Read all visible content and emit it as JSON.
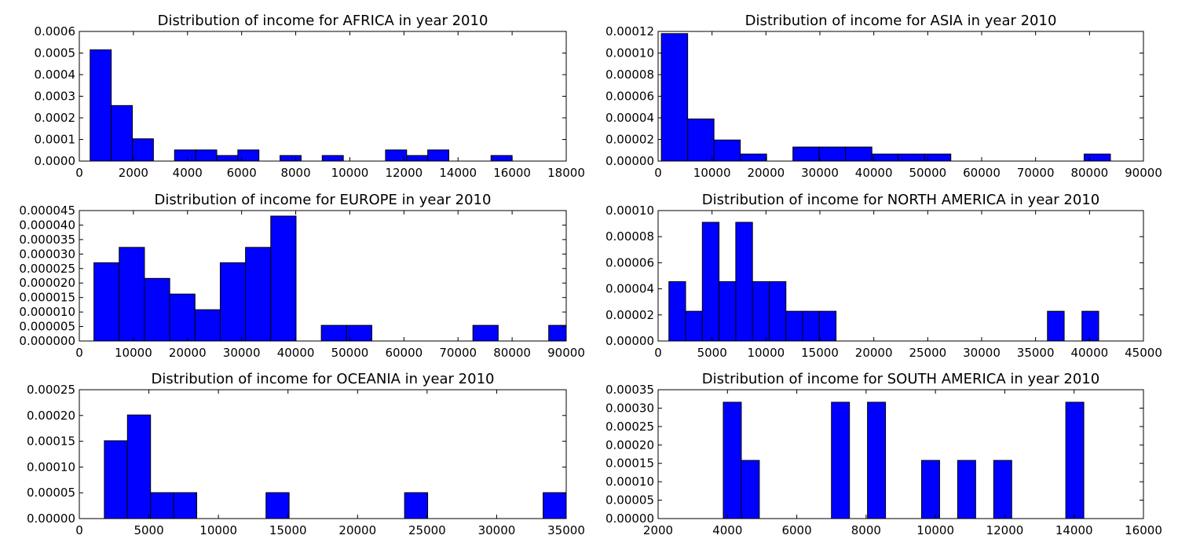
{
  "chart_data": [
    {
      "type": "bar",
      "title": "Distribution of income for AFRICA in year 2010",
      "xlabel": "",
      "ylabel": "",
      "xlim": [
        0,
        18000
      ],
      "ylim": [
        0,
        0.0006
      ],
      "xticks": [
        "0",
        "2000",
        "4000",
        "6000",
        "8000",
        "10000",
        "12000",
        "14000",
        "16000",
        "18000"
      ],
      "yticks": [
        "0.0000",
        "0.0001",
        "0.0002",
        "0.0003",
        "0.0004",
        "0.0005",
        "0.0006"
      ],
      "bins": [
        {
          "x0": 400,
          "x1": 1180,
          "value": 0.000515
        },
        {
          "x0": 1180,
          "x1": 1960,
          "value": 0.000257
        },
        {
          "x0": 1960,
          "x1": 2740,
          "value": 0.000103
        },
        {
          "x0": 3520,
          "x1": 4300,
          "value": 5.15e-05
        },
        {
          "x0": 4300,
          "x1": 5080,
          "value": 5.15e-05
        },
        {
          "x0": 5080,
          "x1": 5860,
          "value": 2.57e-05
        },
        {
          "x0": 5860,
          "x1": 6640,
          "value": 5.15e-05
        },
        {
          "x0": 7420,
          "x1": 8200,
          "value": 2.57e-05
        },
        {
          "x0": 8980,
          "x1": 9760,
          "value": 2.57e-05
        },
        {
          "x0": 11320,
          "x1": 12100,
          "value": 5.15e-05
        },
        {
          "x0": 12100,
          "x1": 12880,
          "value": 2.57e-05
        },
        {
          "x0": 12880,
          "x1": 13660,
          "value": 5.15e-05
        },
        {
          "x0": 15220,
          "x1": 16000,
          "value": 2.57e-05
        }
      ]
    },
    {
      "type": "bar",
      "title": "Distribution of income for ASIA in year 2010",
      "xlabel": "",
      "ylabel": "",
      "xlim": [
        0,
        90000
      ],
      "ylim": [
        0,
        0.00012
      ],
      "xticks": [
        "0",
        "10000",
        "20000",
        "30000",
        "40000",
        "50000",
        "60000",
        "70000",
        "80000",
        "90000"
      ],
      "yticks": [
        "0.00000",
        "0.00002",
        "0.00004",
        "0.00006",
        "0.00008",
        "0.00010",
        "0.00012"
      ],
      "bins": [
        {
          "x0": 600,
          "x1": 5480,
          "value": 0.000118
        },
        {
          "x0": 5480,
          "x1": 10360,
          "value": 3.9e-05
        },
        {
          "x0": 10360,
          "x1": 15240,
          "value": 1.95e-05
        },
        {
          "x0": 15240,
          "x1": 20120,
          "value": 6.5e-06
        },
        {
          "x0": 20120,
          "x1": 25000,
          "value": 0.0
        },
        {
          "x0": 25000,
          "x1": 29880,
          "value": 1.3e-05
        },
        {
          "x0": 29880,
          "x1": 34760,
          "value": 1.3e-05
        },
        {
          "x0": 34760,
          "x1": 39640,
          "value": 1.3e-05
        },
        {
          "x0": 39640,
          "x1": 44520,
          "value": 6.5e-06
        },
        {
          "x0": 44520,
          "x1": 49400,
          "value": 6.5e-06
        },
        {
          "x0": 49400,
          "x1": 54280,
          "value": 6.5e-06
        },
        {
          "x0": 79000,
          "x1": 83880,
          "value": 6.5e-06
        }
      ]
    },
    {
      "type": "bar",
      "title": "Distribution of income for EUROPE in year 2010",
      "xlabel": "",
      "ylabel": "",
      "xlim": [
        0,
        90000
      ],
      "ylim": [
        0,
        4.5e-05
      ],
      "xticks": [
        "0",
        "10000",
        "20000",
        "30000",
        "40000",
        "50000",
        "60000",
        "70000",
        "80000",
        "90000"
      ],
      "yticks": [
        "0.000000",
        "0.000005",
        "0.000010",
        "0.000015",
        "0.000020",
        "0.000025",
        "0.000030",
        "0.000035",
        "0.000040",
        "0.000045"
      ],
      "bins": [
        {
          "x0": 2700,
          "x1": 7370,
          "value": 2.7e-05
        },
        {
          "x0": 7370,
          "x1": 12040,
          "value": 3.23e-05
        },
        {
          "x0": 12040,
          "x1": 16710,
          "value": 2.16e-05
        },
        {
          "x0": 16710,
          "x1": 21380,
          "value": 1.62e-05
        },
        {
          "x0": 21380,
          "x1": 26050,
          "value": 1.08e-05
        },
        {
          "x0": 26050,
          "x1": 30720,
          "value": 2.7e-05
        },
        {
          "x0": 30720,
          "x1": 35390,
          "value": 3.23e-05
        },
        {
          "x0": 35390,
          "x1": 40060,
          "value": 4.31e-05
        },
        {
          "x0": 44730,
          "x1": 49400,
          "value": 5.4e-06
        },
        {
          "x0": 49400,
          "x1": 54070,
          "value": 5.4e-06
        },
        {
          "x0": 72750,
          "x1": 77420,
          "value": 5.4e-06
        },
        {
          "x0": 86760,
          "x1": 91430,
          "value": 5.4e-06
        }
      ]
    },
    {
      "type": "bar",
      "title": "Distribution of income for NORTH AMERICA in year 2010",
      "xlabel": "",
      "ylabel": "",
      "xlim": [
        0,
        45000
      ],
      "ylim": [
        0,
        0.0001
      ],
      "xticks": [
        "0",
        "5000",
        "10000",
        "15000",
        "20000",
        "25000",
        "30000",
        "35000",
        "40000",
        "45000"
      ],
      "yticks": [
        "0.00000",
        "0.00002",
        "0.00004",
        "0.00006",
        "0.00008",
        "0.00010"
      ],
      "bins": [
        {
          "x0": 1000,
          "x1": 2550,
          "value": 4.55e-05
        },
        {
          "x0": 2550,
          "x1": 4100,
          "value": 2.28e-05
        },
        {
          "x0": 4100,
          "x1": 5650,
          "value": 9.1e-05
        },
        {
          "x0": 5650,
          "x1": 7200,
          "value": 4.55e-05
        },
        {
          "x0": 7200,
          "x1": 8750,
          "value": 9.1e-05
        },
        {
          "x0": 8750,
          "x1": 10300,
          "value": 4.55e-05
        },
        {
          "x0": 10300,
          "x1": 11850,
          "value": 4.55e-05
        },
        {
          "x0": 11850,
          "x1": 13400,
          "value": 2.28e-05
        },
        {
          "x0": 13400,
          "x1": 14950,
          "value": 2.28e-05
        },
        {
          "x0": 14950,
          "x1": 16500,
          "value": 2.28e-05
        },
        {
          "x0": 36100,
          "x1": 37650,
          "value": 2.28e-05
        },
        {
          "x0": 39300,
          "x1": 40850,
          "value": 2.28e-05
        }
      ]
    },
    {
      "type": "bar",
      "title": "Distribution of income for OCEANIA in year 2010",
      "xlabel": "",
      "ylabel": "",
      "xlim": [
        0,
        35000
      ],
      "ylim": [
        0,
        0.00025
      ],
      "xticks": [
        "0",
        "5000",
        "10000",
        "15000",
        "20000",
        "25000",
        "30000",
        "35000"
      ],
      "yticks": [
        "0.00000",
        "0.00005",
        "0.00010",
        "0.00015",
        "0.00020",
        "0.00025"
      ],
      "bins": [
        {
          "x0": 1800,
          "x1": 3460,
          "value": 0.000151
        },
        {
          "x0": 3460,
          "x1": 5120,
          "value": 0.000201
        },
        {
          "x0": 5120,
          "x1": 6780,
          "value": 5.03e-05
        },
        {
          "x0": 6780,
          "x1": 8440,
          "value": 5.03e-05
        },
        {
          "x0": 13420,
          "x1": 15080,
          "value": 5.03e-05
        },
        {
          "x0": 23380,
          "x1": 25040,
          "value": 5.03e-05
        },
        {
          "x0": 33340,
          "x1": 35000,
          "value": 5.03e-05
        }
      ]
    },
    {
      "type": "bar",
      "title": "Distribution of income for SOUTH AMERICA in year 2010",
      "xlabel": "",
      "ylabel": "",
      "xlim": [
        2000,
        16000
      ],
      "ylim": [
        0,
        0.00035
      ],
      "xticks": [
        "2000",
        "4000",
        "6000",
        "8000",
        "10000",
        "12000",
        "14000",
        "16000"
      ],
      "yticks": [
        "0.00000",
        "0.00005",
        "0.00010",
        "0.00015",
        "0.00020",
        "0.00025",
        "0.00030",
        "0.00035"
      ],
      "bins": [
        {
          "x0": 3880,
          "x1": 4400,
          "value": 0.000316
        },
        {
          "x0": 4400,
          "x1": 4920,
          "value": 0.000158
        },
        {
          "x0": 7000,
          "x1": 7520,
          "value": 0.000316
        },
        {
          "x0": 8040,
          "x1": 8560,
          "value": 0.000316
        },
        {
          "x0": 9600,
          "x1": 10120,
          "value": 0.000158
        },
        {
          "x0": 10640,
          "x1": 11160,
          "value": 0.000158
        },
        {
          "x0": 11680,
          "x1": 12200,
          "value": 0.000158
        },
        {
          "x0": 13760,
          "x1": 14280,
          "value": 0.000316
        }
      ]
    }
  ],
  "style": {
    "bar_fill": "#0000ff",
    "bar_edge": "#000000",
    "axes_edge": "#000000",
    "background": "#ffffff"
  }
}
